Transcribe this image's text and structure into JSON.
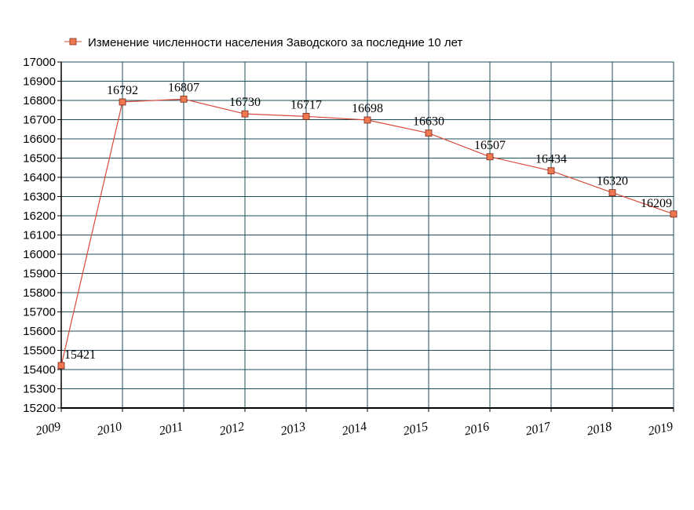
{
  "chart_data": {
    "type": "line",
    "legend_position": "top-left",
    "grid": true,
    "x": [
      "2009",
      "2010",
      "2011",
      "2012",
      "2013",
      "2014",
      "2015",
      "2016",
      "2017",
      "2018",
      "2019"
    ],
    "series": [
      {
        "name": "Изменение численности населения Заводского за последние 10 лет",
        "values": [
          15421,
          16792,
          16807,
          16730,
          16717,
          16698,
          16630,
          16507,
          16434,
          16320,
          16209
        ],
        "color": "#d94a3a",
        "marker_color": "#f07850"
      }
    ],
    "data_labels": [
      "15421",
      "16792",
      "16807",
      "16730",
      "16717",
      "16698",
      "16630",
      "16507",
      "16434",
      "16320",
      "16209"
    ],
    "ylim": [
      15200,
      17000
    ],
    "y_ticks": [
      "15200",
      "15300",
      "15400",
      "15500",
      "15600",
      "15700",
      "15800",
      "15900",
      "16000",
      "16100",
      "16200",
      "16300",
      "16400",
      "16500",
      "16600",
      "16700",
      "16800",
      "16900",
      "17000"
    ],
    "grid_color": "#1f4e5a"
  }
}
